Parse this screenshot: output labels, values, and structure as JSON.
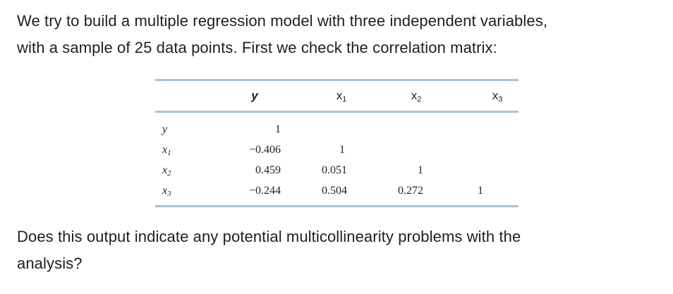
{
  "intro": {
    "line1": "We try to build a multiple regression model with three independent variables,",
    "line2": "with a sample of 25 data points. First we check the correlation matrix:"
  },
  "table": {
    "columns": [
      {
        "name": "y",
        "sub": ""
      },
      {
        "name": "x",
        "sub": "1"
      },
      {
        "name": "x",
        "sub": "2"
      },
      {
        "name": "x",
        "sub": "3"
      }
    ],
    "rows": [
      {
        "name": "y",
        "sub": "",
        "values": [
          "1",
          "",
          "",
          ""
        ]
      },
      {
        "name": "x",
        "sub": "1",
        "values": [
          "−0.406",
          "1",
          "",
          ""
        ]
      },
      {
        "name": "x",
        "sub": "2",
        "values": [
          "0.459",
          "0.051",
          "1",
          ""
        ]
      },
      {
        "name": "x",
        "sub": "3",
        "values": [
          "−0.244",
          "0.504",
          "0.272",
          "1"
        ]
      }
    ],
    "rule_color": "#a9c2d4"
  },
  "question": {
    "line1": "Does this output indicate any potential multicollinearity problems with the",
    "line2": "analysis?"
  }
}
